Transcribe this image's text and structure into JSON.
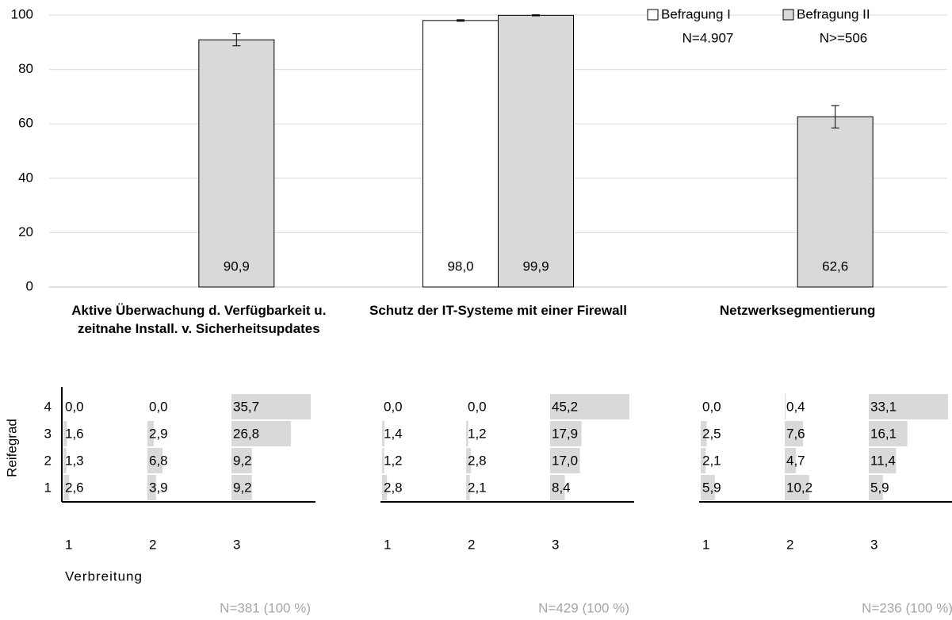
{
  "chart_data": [
    {
      "type": "bar",
      "categories": [
        "Aktive Überwachung d. Verfügbarkeit u. zeitnahe Install. v. Sicherheitsupdates",
        "Schutz der IT-Systeme mit einer Firewall",
        "Netzwerksegmentierung"
      ],
      "series": [
        {
          "name": "Befragung I",
          "n_label": "N=4.907",
          "color": "#ffffff",
          "values": [
            null,
            98.0,
            null
          ],
          "value_labels": [
            null,
            "98,0",
            null
          ],
          "errors": [
            null,
            0.3,
            null
          ]
        },
        {
          "name": "Befragung II",
          "n_label": "N>=506",
          "color": "#d9d9d9",
          "values": [
            90.9,
            99.9,
            62.6
          ],
          "value_labels": [
            "90,9",
            "99,9",
            "62,6"
          ],
          "errors": [
            2.2,
            0.2,
            4.1
          ]
        }
      ],
      "ylim": [
        0,
        100
      ],
      "yticks": [
        0,
        20,
        40,
        60,
        80,
        100
      ],
      "grid": true,
      "legend": "top-right"
    },
    {
      "type": "heatmap",
      "y_label": "Reifegrad",
      "x_label": "Verbreitung",
      "rows": [
        4,
        3,
        2,
        1
      ],
      "columns": [
        1,
        2,
        3
      ],
      "color": "#d9d9d9",
      "panels": [
        {
          "n_label": "N=381 (100 %)",
          "values": [
            [
              0.0,
              0.0,
              35.7
            ],
            [
              1.6,
              2.9,
              26.8
            ],
            [
              1.3,
              6.8,
              9.2
            ],
            [
              2.6,
              3.9,
              9.2
            ]
          ],
          "value_labels": [
            [
              "0,0",
              "0,0",
              "35,7"
            ],
            [
              "1,6",
              "2,9",
              "26,8"
            ],
            [
              "1,3",
              "6,8",
              "9,2"
            ],
            [
              "2,6",
              "3,9",
              "9,2"
            ]
          ]
        },
        {
          "n_label": "N=429 (100 %)",
          "values": [
            [
              0.0,
              0.0,
              45.2
            ],
            [
              1.4,
              1.2,
              17.9
            ],
            [
              1.2,
              2.8,
              17.0
            ],
            [
              2.8,
              2.1,
              8.4
            ]
          ],
          "value_labels": [
            [
              "0,0",
              "0,0",
              "45,2"
            ],
            [
              "1,4",
              "1,2",
              "17,9"
            ],
            [
              "1,2",
              "2,8",
              "17,0"
            ],
            [
              "2,8",
              "2,1",
              "8,4"
            ]
          ]
        },
        {
          "n_label": "N=236 (100 %)",
          "values": [
            [
              0.0,
              0.4,
              33.1
            ],
            [
              2.5,
              7.6,
              16.1
            ],
            [
              2.1,
              4.7,
              11.4
            ],
            [
              5.9,
              10.2,
              5.9
            ]
          ],
          "value_labels": [
            [
              "0,0",
              "0,4",
              "33,1"
            ],
            [
              "2,5",
              "7,6",
              "16,1"
            ],
            [
              "2,1",
              "4,7",
              "11,4"
            ],
            [
              "5,9",
              "10,2",
              "5,9"
            ]
          ]
        }
      ]
    }
  ]
}
